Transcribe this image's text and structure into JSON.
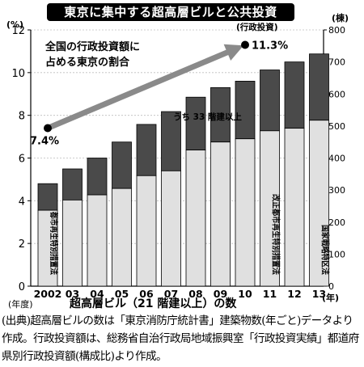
{
  "title": "東京に集中する超高層ビルと公共投資",
  "left_unit": "(%)",
  "right_unit": "(棟)",
  "x_caption": "超高層ビル（21 階建以上）の数",
  "x_unit": "(年)",
  "x_origin_label": "(年度)",
  "source": "(出典)超高層ビルの数は「東京消防庁統計書」建築物数(年ごと)データより作成。行政投資額は、総務省自治行政局地域振興室「行政投資実績」都道府県別行政投資額(構成比)より作成。",
  "chart_data": {
    "type": "bar",
    "categories": [
      "2002",
      "03",
      "04",
      "05",
      "06",
      "07",
      "08",
      "09",
      "10",
      "11",
      "12",
      "13"
    ],
    "series": [
      {
        "name": "",
        "role": "total",
        "values": [
          320,
          366,
          400,
          450,
          505,
          545,
          590,
          620,
          640,
          675,
          700,
          725
        ]
      },
      {
        "name": "うち 33 階建以上",
        "role": "subset",
        "values": [
          83,
          97,
          115,
          145,
          160,
          185,
          165,
          170,
          180,
          190,
          207,
          207
        ]
      }
    ],
    "line": {
      "name": "全国の行政投資額に占める東京の割合",
      "label_right": "(行政投資)",
      "start": {
        "x": "2002",
        "y": 7.4,
        "label": "7.4%"
      },
      "end": {
        "x": "10",
        "y": 11.3,
        "label": "11.3%"
      }
    },
    "left_axis": {
      "ylim": [
        0,
        12
      ],
      "ticks": [
        0,
        2,
        4,
        6,
        8,
        10,
        12
      ]
    },
    "right_axis": {
      "ylim": [
        0,
        800
      ],
      "ticks": [
        0,
        100,
        200,
        300,
        400,
        500,
        600,
        700,
        800
      ]
    },
    "annotations": [
      {
        "text": "都市再生特別措置法",
        "x": "2002"
      },
      {
        "text": "改正都市再生特別措置法",
        "x": "11"
      },
      {
        "text": "国家戦略特区法",
        "x": "13"
      }
    ],
    "colors": {
      "bar_top": "#4a4a4a",
      "bar_bottom": "#e0e0e0",
      "arrow": "#8a8a8a"
    }
  }
}
